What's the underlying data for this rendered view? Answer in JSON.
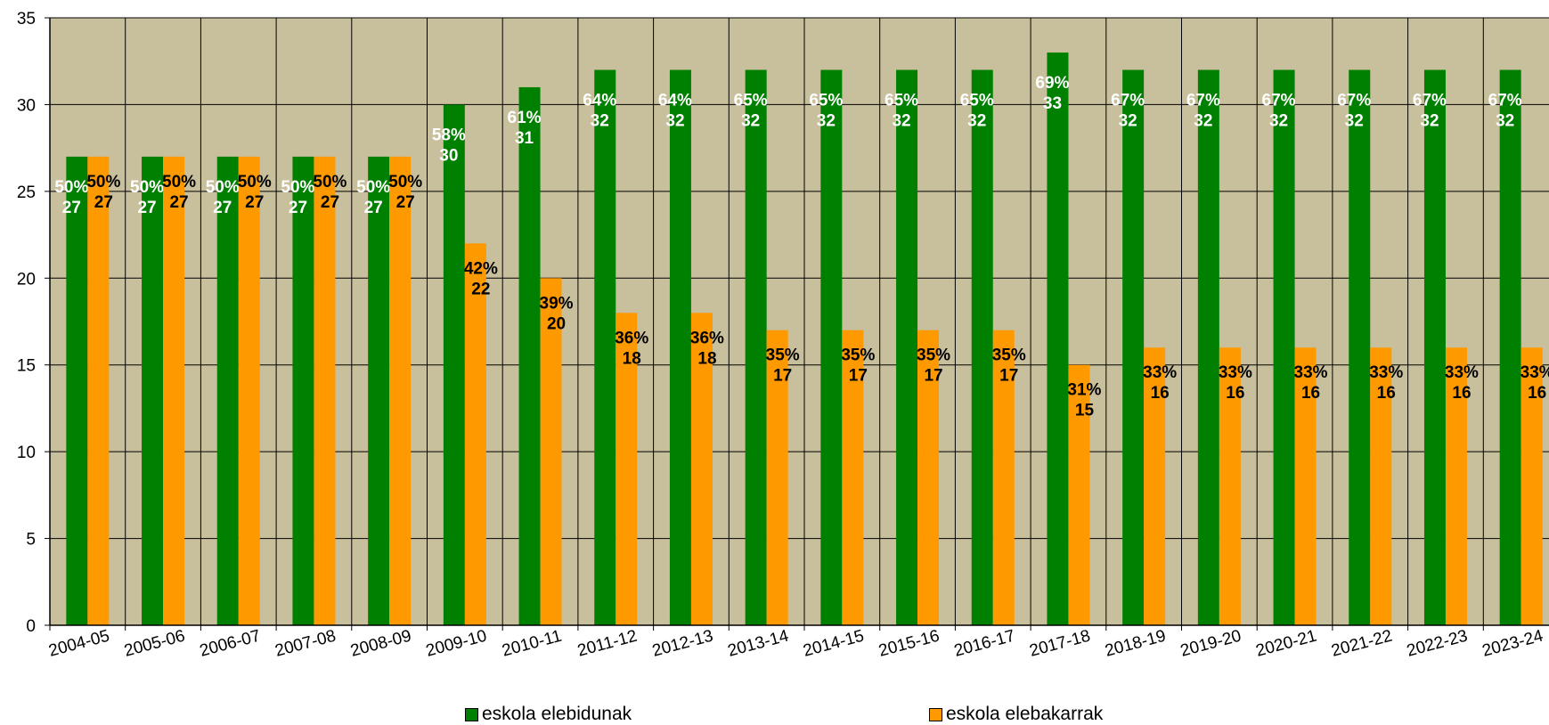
{
  "chart_data": {
    "type": "bar",
    "categories": [
      "2004-05",
      "2005-06",
      "2006-07",
      "2007-08",
      "2008-09",
      "2009-10",
      "2010-11",
      "2011-12",
      "2012-13",
      "2013-14",
      "2014-15",
      "2015-16",
      "2016-17",
      "2017-18",
      "2018-19",
      "2019-20",
      "2020-21",
      "2021-22",
      "2022-23",
      "2023-24"
    ],
    "series": [
      {
        "name": "eskola elebidunak",
        "color": "#008000",
        "values": [
          27,
          27,
          27,
          27,
          27,
          30,
          31,
          32,
          32,
          32,
          32,
          32,
          32,
          33,
          32,
          32,
          32,
          32,
          32,
          32
        ],
        "percents": [
          "50%",
          "50%",
          "50%",
          "50%",
          "50%",
          "58%",
          "61%",
          "64%",
          "64%",
          "65%",
          "65%",
          "65%",
          "65%",
          "69%",
          "67%",
          "67%",
          "67%",
          "67%",
          "67%",
          "67%"
        ]
      },
      {
        "name": "eskola elebakarrak",
        "color": "#ff9900",
        "values": [
          27,
          27,
          27,
          27,
          27,
          22,
          20,
          18,
          18,
          17,
          17,
          17,
          17,
          15,
          16,
          16,
          16,
          16,
          16,
          16
        ],
        "percents": [
          "50%",
          "50%",
          "50%",
          "50%",
          "50%",
          "42%",
          "39%",
          "36%",
          "36%",
          "35%",
          "35%",
          "35%",
          "35%",
          "31%",
          "33%",
          "33%",
          "33%",
          "33%",
          "33%",
          "33%"
        ]
      }
    ],
    "yticks": [
      0,
      5,
      10,
      15,
      20,
      25,
      30,
      35
    ],
    "ylim": [
      0,
      35
    ],
    "plot_background": "#c8bf9c",
    "grid": true,
    "legend_position": "bottom",
    "title": "",
    "xlabel": "",
    "ylabel": ""
  }
}
